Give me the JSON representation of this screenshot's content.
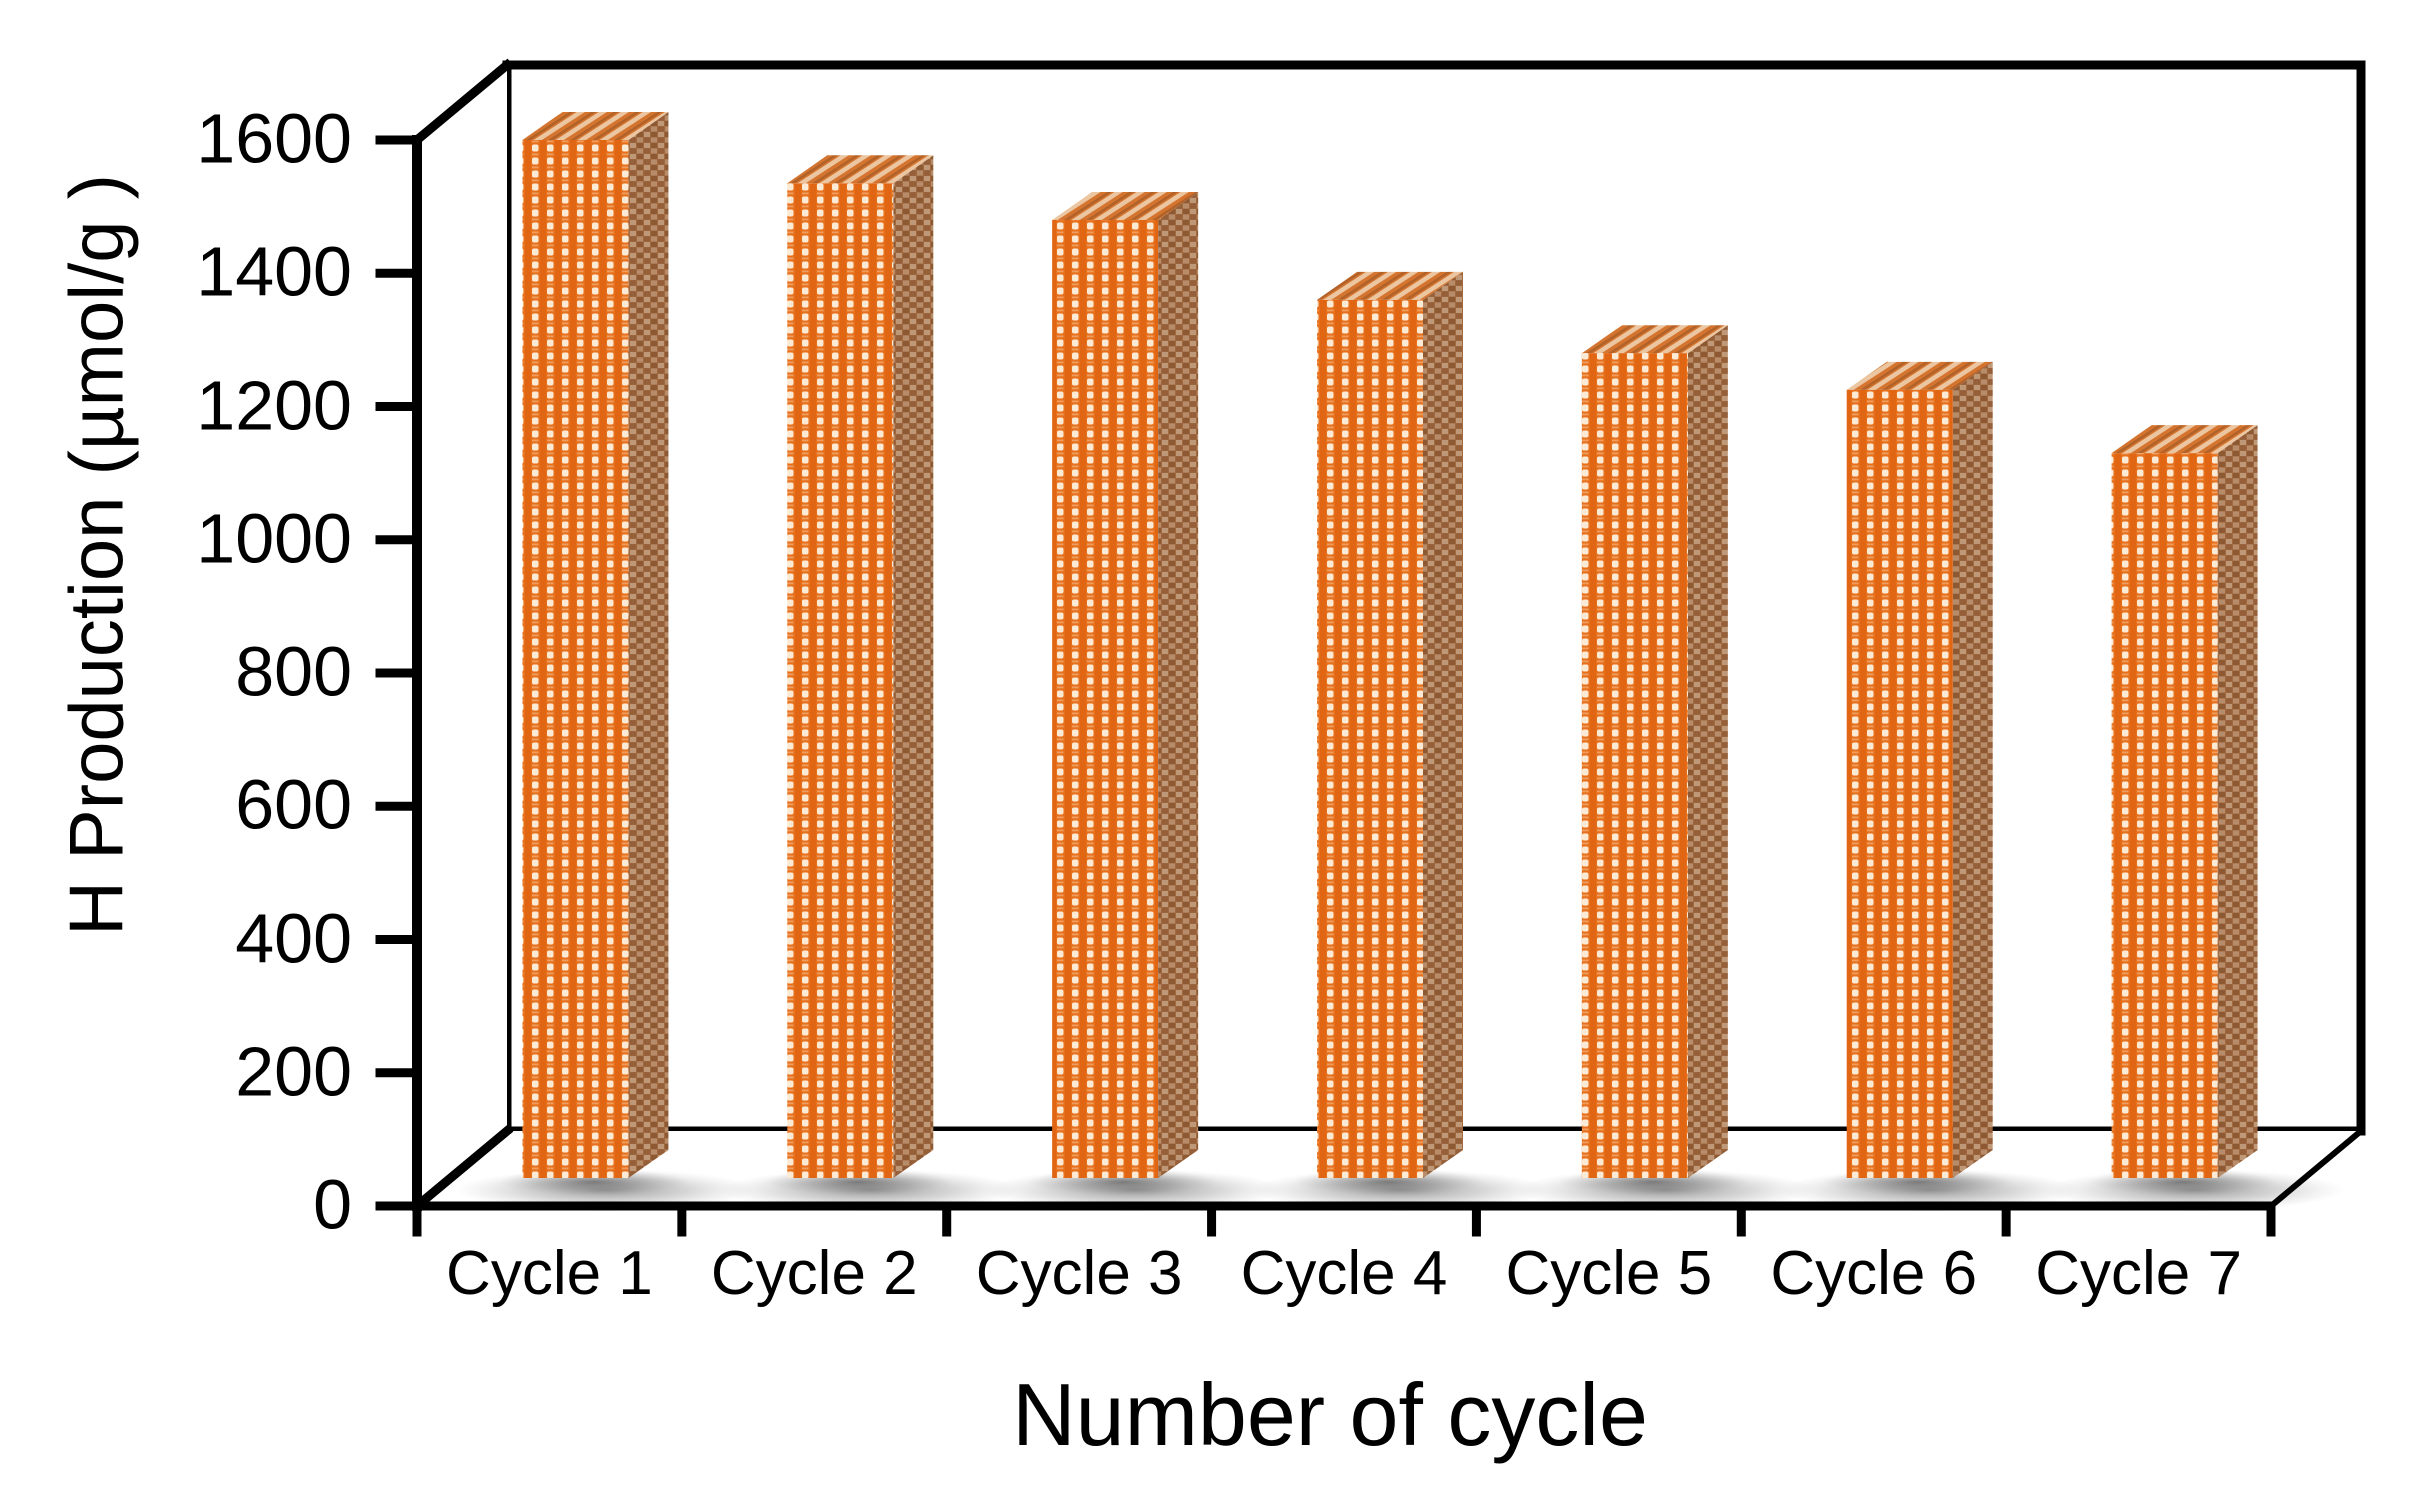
{
  "chart_data": {
    "type": "bar",
    "projection": "3d-column",
    "title": "",
    "xlabel": "Number of cycle",
    "ylabel": "H Production (µmol/g )",
    "categories": [
      "Cycle 1",
      "Cycle 2",
      "Cycle 3",
      "Cycle 4",
      "Cycle 5",
      "Cycle 6",
      "Cycle 7"
    ],
    "values": [
      1600,
      1535,
      1480,
      1360,
      1280,
      1225,
      1130
    ],
    "ylim": [
      0,
      1600
    ],
    "ytick_step": 200,
    "yticks": [
      0,
      200,
      400,
      600,
      800,
      1000,
      1200,
      1400,
      1600
    ],
    "grid": false,
    "legend": null,
    "colors": {
      "bar_front": "#E7701C",
      "bar_front_stripe": "#DD5F0D",
      "bar_front_dash": "#FFF3E3",
      "bar_side": "#A06940",
      "bar_side_light": "#BF9878",
      "bar_side_dark": "#8D5933",
      "bar_top": "#D4742F",
      "bar_top_light": "#EFD5B5",
      "bar_top_dark": "#A95E28",
      "frame": "#000000",
      "text": "#000000",
      "background": "#FFFFFF",
      "shadow": "#3C3C3C"
    }
  }
}
